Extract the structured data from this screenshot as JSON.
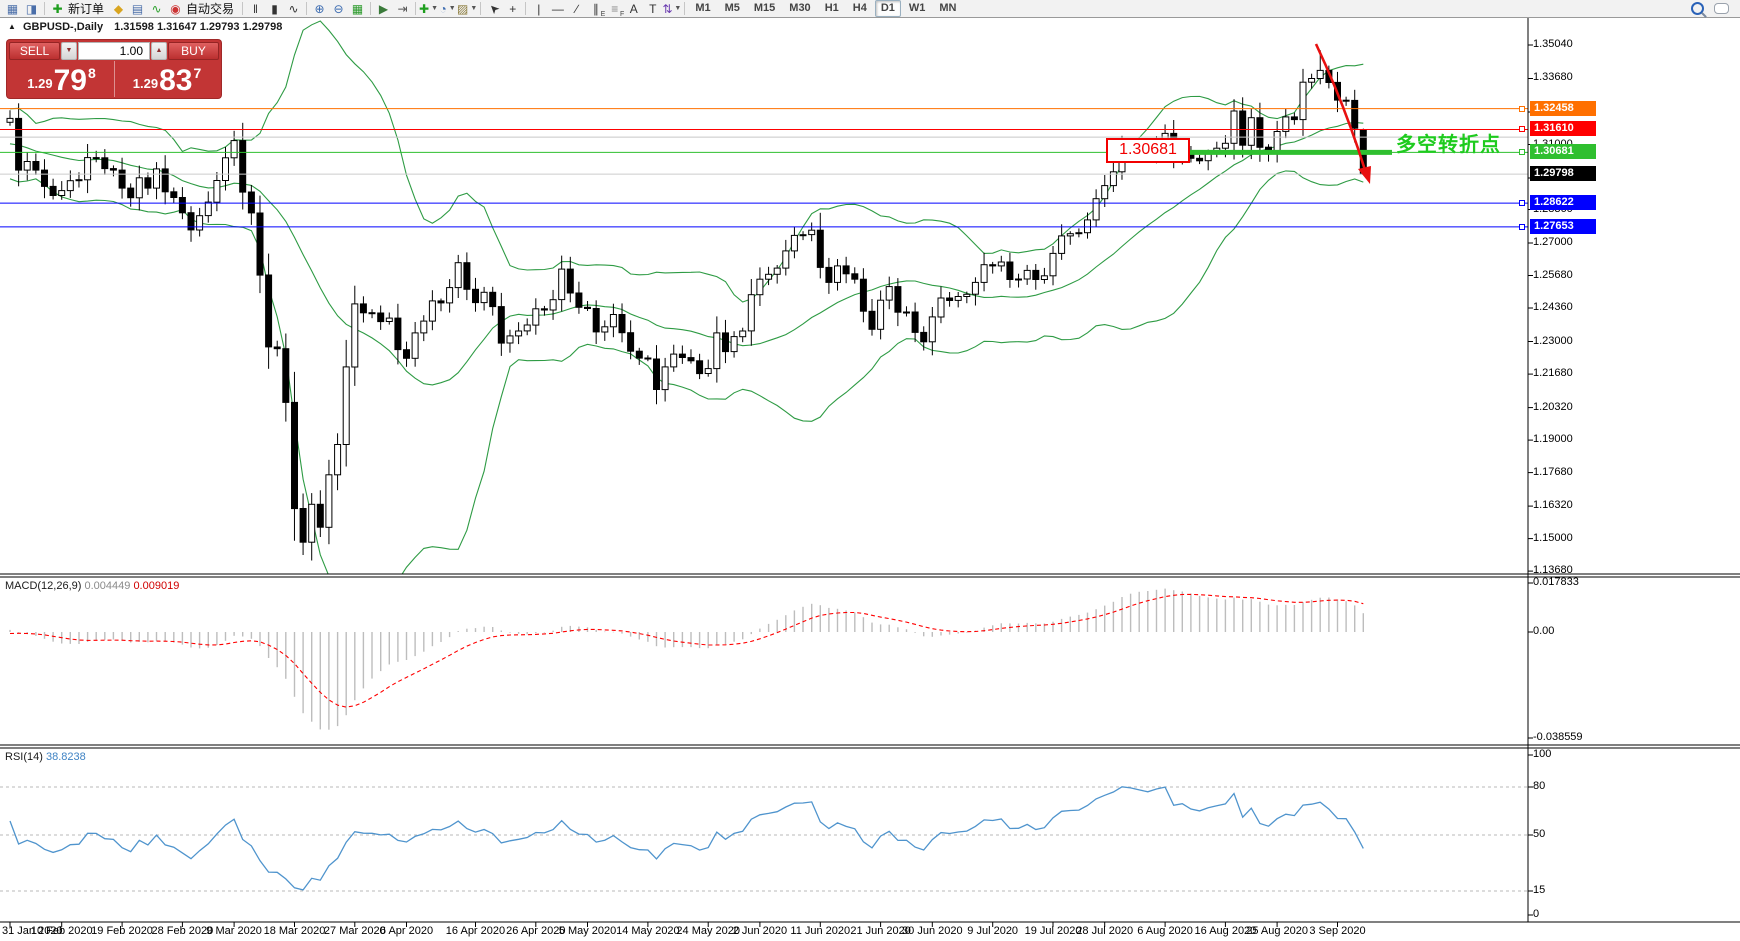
{
  "toolbar": {
    "items": [
      {
        "type": "button",
        "name": "new-chart-button",
        "glyph": "▦",
        "color": "#4a6ea9"
      },
      {
        "type": "button",
        "name": "profiles-button",
        "glyph": "◨",
        "color": "#4a6ea9"
      },
      {
        "type": "separator"
      },
      {
        "type": "button",
        "name": "new-order-button",
        "glyph": "✚",
        "color": "#1e9e1e",
        "label": "新订单"
      },
      {
        "type": "button",
        "name": "funnel-button",
        "glyph": "◆",
        "color": "#d9a520"
      },
      {
        "type": "button",
        "name": "terminal-button",
        "glyph": "▤",
        "color": "#4a6ea9"
      },
      {
        "type": "button",
        "name": "signals-button",
        "glyph": "∿",
        "color": "#2aa02a"
      },
      {
        "type": "button",
        "name": "autotrading-button",
        "glyph": "◉",
        "color": "#cc3333",
        "label": "自动交易"
      },
      {
        "type": "separator"
      },
      {
        "type": "button",
        "name": "bar-chart-button",
        "glyph": "‖",
        "color": "#333333"
      },
      {
        "type": "button",
        "name": "candlestick-chart-button",
        "glyph": "▮",
        "color": "#333333"
      },
      {
        "type": "button",
        "name": "line-chart-button",
        "glyph": "∿",
        "color": "#333333"
      },
      {
        "type": "separator"
      },
      {
        "type": "button",
        "name": "zoom-in-button",
        "glyph": "⊕",
        "color": "#3a6ab0"
      },
      {
        "type": "button",
        "name": "zoom-out-button",
        "glyph": "⊖",
        "color": "#3a6ab0"
      },
      {
        "type": "button",
        "name": "tile-windows-button",
        "glyph": "▦",
        "color": "#2a9a2a"
      },
      {
        "type": "separator"
      },
      {
        "type": "button",
        "name": "auto-scroll-button",
        "glyph": "▶",
        "color": "#3a7a3a"
      },
      {
        "type": "button",
        "name": "chart-shift-button",
        "glyph": "⇥",
        "color": "#555555"
      },
      {
        "type": "separator"
      },
      {
        "type": "button",
        "name": "indicators-button",
        "glyph": "✚",
        "color": "#1e9e1e",
        "dropdown": true
      },
      {
        "type": "button",
        "name": "periods-button",
        "glyph": "◔",
        "color": "#3a6ab0",
        "dropdown": true
      },
      {
        "type": "button",
        "name": "templates-button",
        "glyph": "▨",
        "color": "#8a7a3a",
        "dropdown": true
      },
      {
        "type": "separator"
      },
      {
        "type": "button",
        "name": "cursor-button",
        "glyph": "➤",
        "color": "#333333",
        "rot": -135
      },
      {
        "type": "button",
        "name": "crosshair-button",
        "glyph": "+",
        "color": "#333333"
      },
      {
        "type": "separator"
      },
      {
        "type": "button",
        "name": "vertical-line-button",
        "glyph": "|",
        "color": "#333333"
      },
      {
        "type": "button",
        "name": "horizontal-line-button",
        "glyph": "—",
        "color": "#333333"
      },
      {
        "type": "button",
        "name": "trendline-button",
        "glyph": "∕",
        "color": "#333333"
      },
      {
        "type": "button",
        "name": "equidistant-channel-button",
        "glyph": "∥",
        "sub": "E",
        "color": "#333333"
      },
      {
        "type": "button",
        "name": "fibonacci-button",
        "glyph": "≡",
        "sub": "F",
        "color": "#888888"
      },
      {
        "type": "button",
        "name": "text-button",
        "glyph": "A",
        "color": "#333333"
      },
      {
        "type": "button",
        "name": "text-label-button",
        "glyph": "T",
        "color": "#333333"
      },
      {
        "type": "button",
        "name": "arrows-button",
        "glyph": "⇅",
        "color": "#6a3ab0",
        "dropdown": true
      },
      {
        "type": "separator"
      }
    ],
    "timeframes": [
      "M1",
      "M5",
      "M15",
      "M30",
      "H1",
      "H4",
      "D1",
      "W1",
      "MN"
    ],
    "active_timeframe": "D1",
    "right_icons": [
      {
        "name": "search-button"
      },
      {
        "name": "chat-button"
      }
    ]
  },
  "chart_header": {
    "collapse_icon": "▲",
    "symbol": "GBPUSD-,Daily",
    "ohlc": "1.31598 1.31647 1.29793 1.29798"
  },
  "trade_panel": {
    "sell_label": "SELL",
    "buy_label": "BUY",
    "volume": "1.00",
    "spinner_down": "▼",
    "spinner_up": "▲",
    "sell_price_small": "1.29",
    "sell_price_big": "79",
    "sell_price_sup": "8",
    "buy_price_small": "1.29",
    "buy_price_big": "83",
    "buy_price_sup": "7"
  },
  "main_pane": {
    "price_ticks": [
      "1.35040",
      "1.33680",
      "1.32320",
      "1.31000",
      "1.29640",
      "1.28360",
      "1.27000",
      "1.25680",
      "1.24360",
      "1.23000",
      "1.21680",
      "1.20320",
      "1.19000",
      "1.17680",
      "1.16320",
      "1.15000",
      "1.13680"
    ],
    "badges": [
      {
        "text": "1.32458",
        "bg": "#ff7000"
      },
      {
        "text": "1.31610",
        "bg": "#ff0000"
      },
      {
        "text": "1.30681",
        "bg": "#2fbf2f"
      },
      {
        "text": "1.29798",
        "bg": "#000000"
      },
      {
        "text": "1.28622",
        "bg": "#0000ff"
      },
      {
        "text": "1.27653",
        "bg": "#0000ff"
      }
    ],
    "annotation_box": "1.30681",
    "annotation_note": "多空转折点"
  },
  "macd_pane": {
    "label": "MACD(12,26,9)",
    "main_value": "0.004449",
    "signal_value": "0.009019",
    "axis": [
      "0.017833",
      "0.00",
      "-0.038559"
    ]
  },
  "rsi_pane": {
    "label": "RSI(14)",
    "value": "38.8238",
    "axis": [
      "100",
      "80",
      "50",
      "15",
      "0"
    ],
    "level_lines": [
      80,
      50,
      15
    ]
  },
  "date_axis": [
    {
      "label": "31 Jan 2020",
      "bar": 0
    },
    {
      "label": "10 Feb 2020",
      "bar": 6
    },
    {
      "label": "19 Feb 2020",
      "bar": 13
    },
    {
      "label": "28 Feb 2020",
      "bar": 20
    },
    {
      "label": "9 Mar 2020",
      "bar": 26
    },
    {
      "label": "18 Mar 2020",
      "bar": 33
    },
    {
      "label": "27 Mar 2020",
      "bar": 40
    },
    {
      "label": "6 Apr 2020",
      "bar": 46
    },
    {
      "label": "16 Apr 2020",
      "bar": 54
    },
    {
      "label": "26 Apr 2020",
      "bar": 61
    },
    {
      "label": "5 May 2020",
      "bar": 67
    },
    {
      "label": "14 May 2020",
      "bar": 74
    },
    {
      "label": "24 May 2020",
      "bar": 81
    },
    {
      "label": "2 Jun 2020",
      "bar": 87
    },
    {
      "label": "11 Jun 2020",
      "bar": 94
    },
    {
      "label": "21 Jun 2020",
      "bar": 101
    },
    {
      "label": "30 Jun 2020",
      "bar": 107
    },
    {
      "label": "9 Jul 2020",
      "bar": 114
    },
    {
      "label": "19 Jul 2020",
      "bar": 121
    },
    {
      "label": "28 Jul 2020",
      "bar": 127
    },
    {
      "label": "6 Aug 2020",
      "bar": 134
    },
    {
      "label": "16 Aug 2020",
      "bar": 141
    },
    {
      "label": "25 Aug 2020",
      "bar": 147
    },
    {
      "label": "3 Sep 2020",
      "bar": 154
    }
  ],
  "chart_data": {
    "type": "candlestick",
    "symbol": "GBPUSD",
    "timeframe": "Daily",
    "visible_price_range": {
      "top": 1.3614,
      "bottom": 1.1346
    },
    "closes": [
      1.3206,
      1.2996,
      1.3031,
      1.2996,
      1.293,
      1.2893,
      1.2913,
      1.2953,
      1.2957,
      1.3047,
      1.3046,
      1.3002,
      1.2996,
      1.2923,
      1.2884,
      1.2965,
      1.2923,
      1.3001,
      1.2908,
      1.2885,
      1.2823,
      1.2753,
      1.2811,
      1.2866,
      1.2954,
      1.3046,
      1.3116,
      1.2907,
      1.2822,
      1.257,
      1.2278,
      1.2271,
      1.2053,
      1.1622,
      1.1485,
      1.1639,
      1.1546,
      1.1759,
      1.1882,
      1.2197,
      1.2453,
      1.2417,
      1.2416,
      1.2381,
      1.2395,
      1.2267,
      1.2232,
      1.2335,
      1.2383,
      1.2465,
      1.2457,
      1.2519,
      1.262,
      1.2512,
      1.2458,
      1.25,
      1.2442,
      1.2294,
      1.2323,
      1.2343,
      1.2367,
      1.2433,
      1.2428,
      1.247,
      1.2594,
      1.2497,
      1.2439,
      1.2434,
      1.2339,
      1.236,
      1.241,
      1.2336,
      1.2261,
      1.2233,
      1.2229,
      1.2105,
      1.2197,
      1.2249,
      1.2235,
      1.2222,
      1.217,
      1.219,
      1.2335,
      1.2259,
      1.232,
      1.2343,
      1.249,
      1.2553,
      1.2573,
      1.2598,
      1.2668,
      1.2731,
      1.2734,
      1.2752,
      1.2601,
      1.254,
      1.2607,
      1.2575,
      1.2553,
      1.2423,
      1.235,
      1.2468,
      1.2523,
      1.2419,
      1.242,
      1.2337,
      1.2299,
      1.24,
      1.2477,
      1.2467,
      1.2483,
      1.2492,
      1.254,
      1.2612,
      1.2607,
      1.2623,
      1.2552,
      1.2554,
      1.2589,
      1.2552,
      1.2567,
      1.2658,
      1.2729,
      1.2738,
      1.2742,
      1.2794,
      1.288,
      1.2933,
      1.2989,
      1.3091,
      1.3085,
      1.3075,
      1.3066,
      1.3112,
      1.3145,
      1.3053,
      1.3073,
      1.3044,
      1.3034,
      1.3065,
      1.3085,
      1.3105,
      1.3236,
      1.3097,
      1.3209,
      1.3089,
      1.3066,
      1.3153,
      1.3212,
      1.3201,
      1.3353,
      1.3368,
      1.3401,
      1.3352,
      1.328,
      1.3279,
      1.3166,
      1.298
    ],
    "warmup_closes": [
      1.306,
      1.3,
      1.2905,
      1.292,
      1.298,
      1.306,
      1.3135,
      1.32,
      1.3335,
      1.348,
      1.3405,
      1.333,
      1.325,
      1.311,
      1.3,
      1.298,
      1.308,
      1.31,
      1.325,
      1.3265,
      1.308,
      1.3065,
      1.3095,
      1.31,
      1.3065,
      1.301,
      1.2995,
      1.3015,
      1.308,
      1.3105,
      1.309,
      1.311,
      1.3085,
      1.3055,
      1.3095,
      1.319
    ],
    "last_candle": {
      "o": 1.31598,
      "h": 1.31647,
      "l": 1.29793,
      "c": 1.29798
    },
    "wick_overrides": {
      "35": {
        "low": 1.1411
      },
      "152": {
        "high": 1.3483
      }
    },
    "indicators": [
      {
        "name": "Bollinger Bands",
        "period": 20,
        "deviation": 2,
        "color": "#2e9b44"
      },
      {
        "name": "MACD",
        "fast": 12,
        "slow": 26,
        "signal": 9,
        "histogram_color": "#bdbdbd",
        "signal_color": "#ff0000",
        "current_main": 0.004449,
        "current_signal": 0.009019
      },
      {
        "name": "RSI",
        "period": 14,
        "color": "#4f94cd",
        "current_value": 38.8238
      }
    ],
    "level_lines": [
      {
        "name": "resistance-orange",
        "price": 1.32458,
        "color": "#ff7000",
        "width": 1
      },
      {
        "name": "resistance-red",
        "price": 1.3161,
        "color": "#ff0000",
        "width": 1
      },
      {
        "name": "gray-line",
        "price": 1.313,
        "color": "#c8c8c8",
        "width": 1
      },
      {
        "name": "pivot-green",
        "price": 1.30681,
        "color": "#2fbf2f",
        "width": 1
      },
      {
        "name": "bid-line",
        "price": 1.29798,
        "color": "#cccccc",
        "width": 1
      },
      {
        "name": "support-blue-1",
        "price": 1.28622,
        "color": "#0000ff",
        "width": 1
      },
      {
        "name": "support-blue-2",
        "price": 1.27653,
        "color": "#0000ff",
        "width": 1
      }
    ],
    "thick_segment": {
      "price": 1.30681,
      "color": "#2fbf2f",
      "width": 5
    },
    "trend_arrow": {
      "color": "#e81010",
      "direction": "down"
    },
    "candle_colors": {
      "bull_fill": "#ffffff",
      "bear_fill": "#000000",
      "outline": "#000000"
    }
  }
}
